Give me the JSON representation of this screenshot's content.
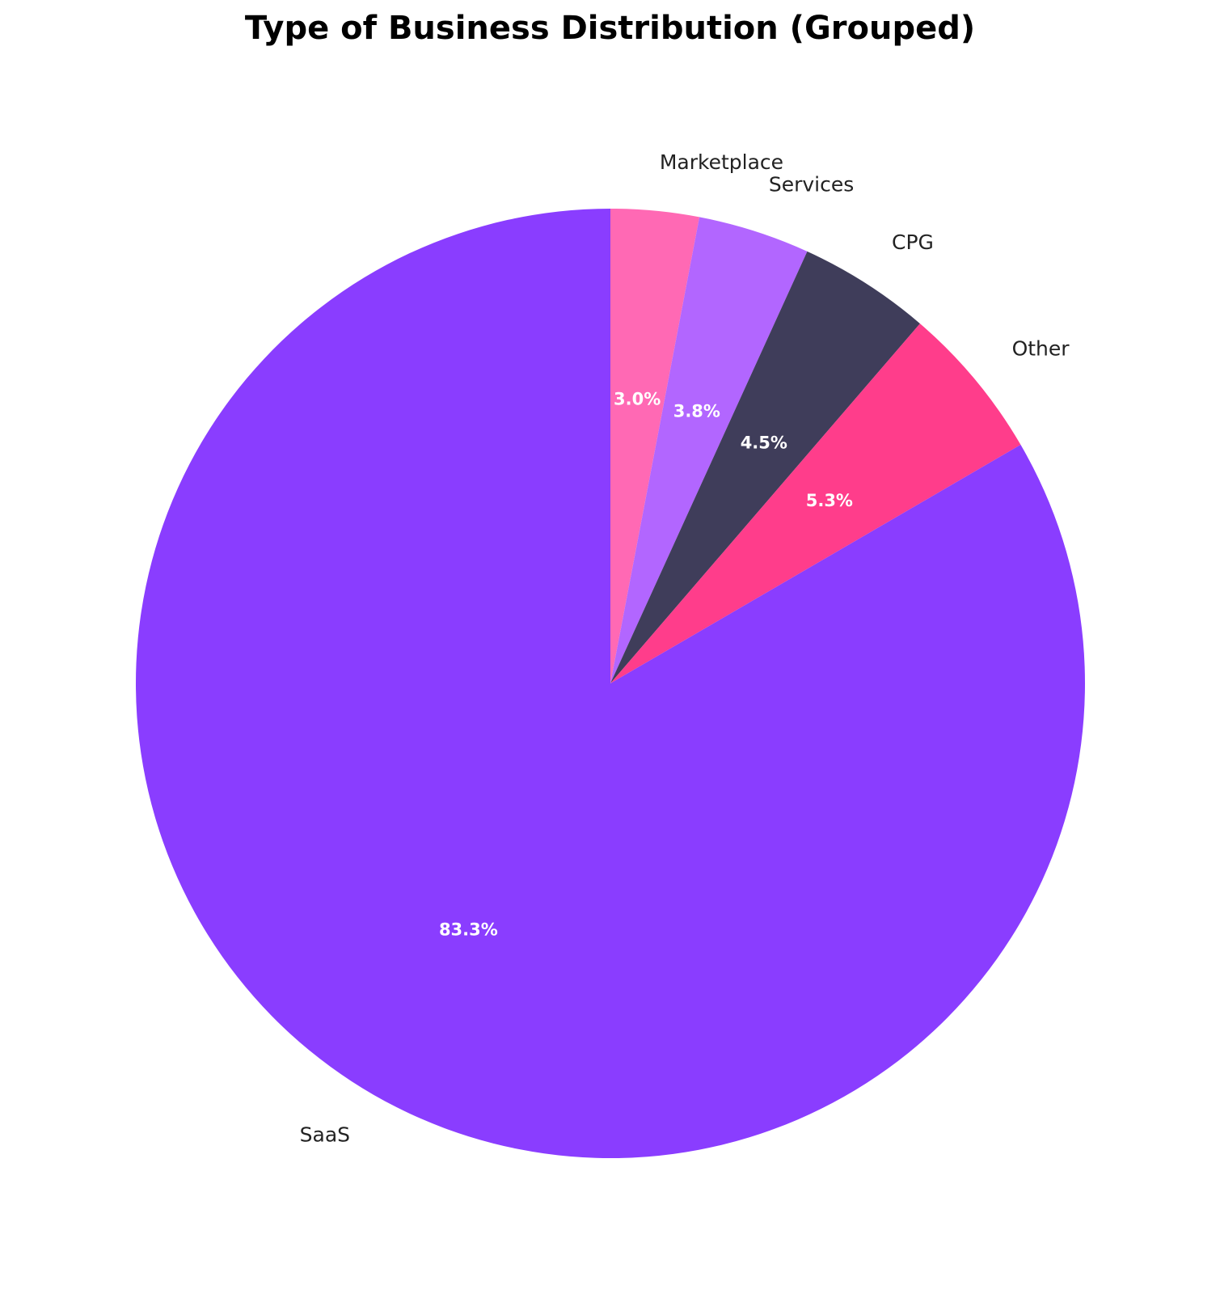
{
  "chart_data": {
    "type": "pie",
    "title": "Type of Business Distribution (Grouped)",
    "start_angle": "top, counter-clockwise",
    "slices": [
      {
        "label": "Marketplace",
        "value": 3.0,
        "pct_label": "3.0%",
        "color": "#FF69B4"
      },
      {
        "label": "Services",
        "value": 3.8,
        "pct_label": "3.8%",
        "color": "#B266FF"
      },
      {
        "label": "CPG",
        "value": 4.5,
        "pct_label": "4.5%",
        "color": "#3F3D5A"
      },
      {
        "label": "Other",
        "value": 5.3,
        "pct_label": "5.3%",
        "color": "#FF3D8B"
      },
      {
        "label": "SaaS",
        "value": 83.3,
        "pct_label": "83.3%",
        "color": "#8A3DFF"
      }
    ]
  }
}
